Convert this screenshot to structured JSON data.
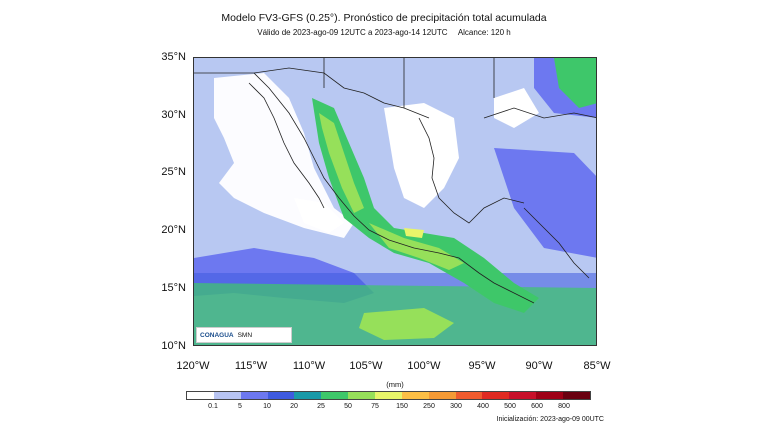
{
  "title": "Modelo FV3-GFS (0.25°). Pronóstico de precipitación total acumulada",
  "subtitle_valid": "Válido de 2023-ago-09 12UTC a 2023-ago-14 12UTC",
  "subtitle_range": "Alcance: 120 h",
  "lat_labels": [
    "35°N",
    "30°N",
    "25°N",
    "20°N",
    "15°N",
    "10°N"
  ],
  "lon_labels": [
    "120°W",
    "115°W",
    "110°W",
    "105°W",
    "100°W",
    "95°W",
    "90°W",
    "85°W"
  ],
  "units": "(mm)",
  "colorbar": {
    "ticks": [
      "0.1",
      "5",
      "10",
      "20",
      "25",
      "50",
      "75",
      "150",
      "250",
      "300",
      "400",
      "500",
      "600",
      "800"
    ],
    "colors": [
      "#ffffff",
      "#b8c4f2",
      "#6d78f0",
      "#3f5be0",
      "#1a9aa8",
      "#3ec76a",
      "#96e05a",
      "#e8f56a",
      "#fdbf45",
      "#f59a35",
      "#ef5b2e",
      "#e02a22",
      "#c8102a",
      "#9e0016",
      "#6a0010"
    ]
  },
  "logos": {
    "left": "CONAGUA",
    "right": "SMN"
  },
  "init": "Inicialización: 2023-ago-09 00UTC"
}
